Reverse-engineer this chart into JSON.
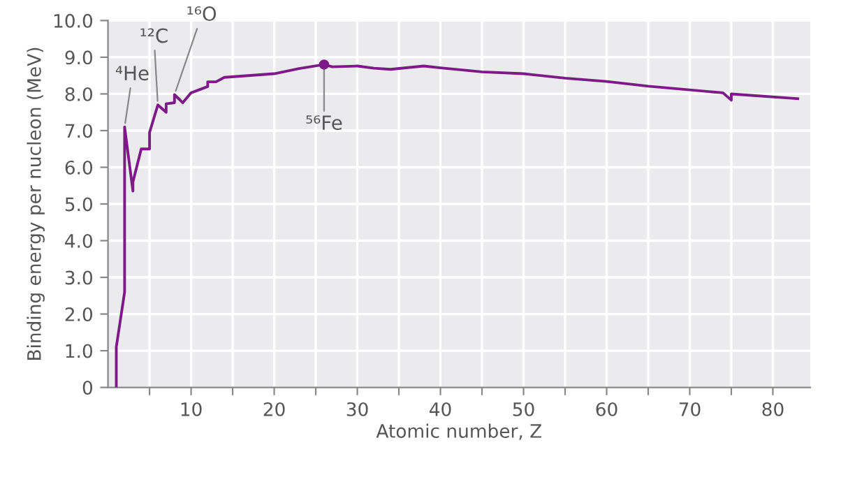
{
  "chart_data": {
    "type": "line",
    "xlabel": "Atomic number, Z",
    "ylabel": "Binding energy per nucleon (MeV)",
    "series": [
      {
        "color": "#7d1a87",
        "x": [
          1,
          1,
          2,
          2,
          3,
          3,
          4,
          5,
          5,
          6,
          7,
          7,
          8,
          8,
          9,
          10,
          12,
          12,
          13,
          14,
          20,
          23,
          26,
          27,
          30,
          32,
          34,
          38,
          40,
          45,
          50,
          55,
          60,
          65,
          74,
          75,
          75,
          83
        ],
        "values": [
          0,
          1.1,
          2.6,
          7.1,
          5.35,
          5.6,
          6.5,
          6.5,
          6.95,
          7.7,
          7.5,
          7.73,
          7.76,
          7.98,
          7.76,
          8.03,
          8.2,
          8.33,
          8.33,
          8.45,
          8.55,
          8.69,
          8.8,
          8.74,
          8.76,
          8.7,
          8.67,
          8.76,
          8.71,
          8.6,
          8.55,
          8.43,
          8.34,
          8.21,
          8.03,
          7.83,
          8.0,
          7.87
        ]
      },
      {
        "type": "scatter",
        "marker": "circle",
        "color": "#7d1a87",
        "x": [
          26
        ],
        "values": [
          8.8
        ]
      }
    ],
    "annotations": [
      {
        "text": "⁴He",
        "x": 2,
        "y": 7.1
      },
      {
        "text": "¹²C",
        "x": 6,
        "y": 7.7
      },
      {
        "text": "¹⁶O",
        "x": 8,
        "y": 7.98
      },
      {
        "text": "⁵⁶Fe",
        "x": 26,
        "y": 8.8
      }
    ],
    "xlim": [
      0,
      84.5
    ],
    "ylim": [
      0,
      10
    ],
    "xticks": [
      {
        "value": 5,
        "label": null
      },
      10,
      {
        "value": 15,
        "label": null
      },
      20,
      {
        "value": 25,
        "label": null
      },
      30,
      {
        "value": 35,
        "label": null
      },
      40,
      {
        "value": 45,
        "label": null
      },
      50,
      {
        "value": 55,
        "label": null
      },
      60,
      {
        "value": 65,
        "label": null
      },
      70,
      {
        "value": 75,
        "label": null
      },
      80
    ],
    "yticks": [
      0,
      {
        "value": 1,
        "label": "1.0"
      },
      {
        "value": 2,
        "label": "2.0"
      },
      {
        "value": 3,
        "label": "3.0"
      },
      {
        "value": 4,
        "label": "4.0"
      },
      {
        "value": 5,
        "label": "5.0"
      },
      {
        "value": 6,
        "label": "6.0"
      },
      {
        "value": 7,
        "label": "7.0"
      },
      {
        "value": 8,
        "label": "8.0"
      },
      {
        "value": 9,
        "label": "9.0"
      },
      {
        "value": 10,
        "label": "10.0"
      }
    ],
    "grid": true,
    "line_style": "solid"
  }
}
